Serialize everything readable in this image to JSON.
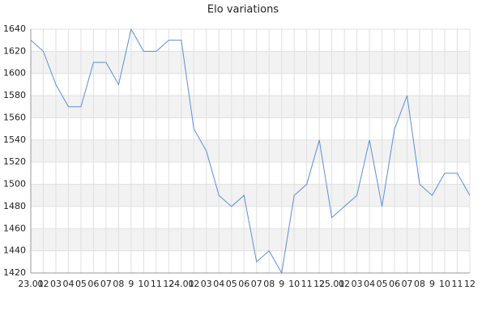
{
  "chart_data": {
    "type": "line",
    "title": "Elo variations",
    "categories": [
      "23.01",
      "02",
      "03",
      "04",
      "05",
      "06",
      "07",
      "08",
      "9",
      "10",
      "11",
      "12",
      "24.01",
      "02",
      "03",
      "04",
      "05",
      "06",
      "07",
      "08",
      "9",
      "10",
      "11",
      "12",
      "25.01",
      "02",
      "03",
      "04",
      "05",
      "06",
      "07",
      "08",
      "9",
      "10",
      "11",
      "12"
    ],
    "values": [
      1630,
      1620,
      1590,
      1570,
      1570,
      1610,
      1610,
      1590,
      1640,
      1620,
      1620,
      1630,
      1630,
      1550,
      1530,
      1490,
      1480,
      1490,
      1430,
      1440,
      1420,
      1490,
      1500,
      1540,
      1470,
      1480,
      1490,
      1540,
      1480,
      1550,
      1580,
      1500,
      1490,
      1510,
      1510,
      1490
    ],
    "color": "#5b8fd9",
    "ylim": [
      1420,
      1640
    ],
    "yticks": [
      1420,
      1440,
      1460,
      1480,
      1500,
      1520,
      1540,
      1560,
      1580,
      1600,
      1620,
      1640
    ],
    "grid": true,
    "band_color": "#f2f2f2"
  }
}
